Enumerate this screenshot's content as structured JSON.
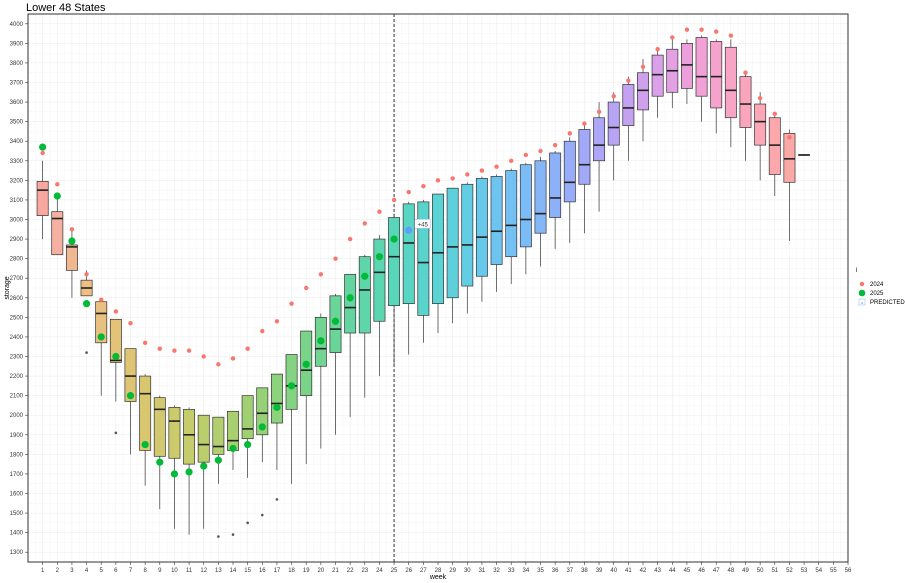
{
  "title": "Lower 48 States",
  "chart_data": {
    "type": "box",
    "title": "Lower 48 States",
    "xlabel": "week",
    "ylabel": "storage",
    "xlim": [
      0,
      56
    ],
    "ylim": [
      1250,
      4050
    ],
    "x_ticks": [
      1,
      2,
      3,
      4,
      5,
      6,
      7,
      8,
      9,
      10,
      11,
      12,
      13,
      14,
      15,
      16,
      17,
      18,
      19,
      20,
      21,
      22,
      23,
      24,
      25,
      26,
      27,
      28,
      29,
      30,
      31,
      32,
      33,
      34,
      35,
      36,
      37,
      38,
      39,
      40,
      41,
      42,
      43,
      44,
      45,
      46,
      47,
      48,
      49,
      50,
      51,
      52,
      53,
      54,
      55,
      56
    ],
    "y_ticks": [
      1300,
      1400,
      1500,
      1600,
      1700,
      1800,
      1900,
      2000,
      2100,
      2200,
      2300,
      2400,
      2500,
      2600,
      2700,
      2800,
      2900,
      3000,
      3100,
      3200,
      3300,
      3400,
      3500,
      3600,
      3700,
      3800,
      3900,
      4000
    ],
    "current_week": 25,
    "legend_title": "l",
    "legend": [
      {
        "label": "2024",
        "color": "#f8766d"
      },
      {
        "label": "2025",
        "color": "#00ba38"
      },
      {
        "label": "PREDICTED",
        "color": "#619cff"
      }
    ],
    "boxes": [
      {
        "week": 1,
        "lo": 2900,
        "q1": 3020,
        "med": 3150,
        "q3": 3195,
        "hi": 3300,
        "color": "#f8a8a0",
        "outliers": []
      },
      {
        "week": 2,
        "lo": 2820,
        "q1": 2820,
        "med": 3005,
        "q3": 3040,
        "hi": 3120,
        "color": "#f4b0a0",
        "outliers": []
      },
      {
        "week": 3,
        "lo": 2600,
        "q1": 2740,
        "med": 2860,
        "q3": 2870,
        "hi": 2940,
        "color": "#f0b890",
        "outliers": []
      },
      {
        "week": 4,
        "lo": 2610,
        "q1": 2610,
        "med": 2650,
        "q3": 2690,
        "hi": 2740,
        "color": "#ecbf85",
        "outliers": [
          2320
        ]
      },
      {
        "week": 5,
        "lo": 2100,
        "q1": 2370,
        "med": 2520,
        "q3": 2580,
        "hi": 2600,
        "color": "#e8c080",
        "outliers": []
      },
      {
        "week": 6,
        "lo": 2070,
        "q1": 2270,
        "med": 2280,
        "q3": 2490,
        "hi": 2490,
        "color": "#e4c378",
        "outliers": [
          1910
        ]
      },
      {
        "week": 7,
        "lo": 1800,
        "q1": 2070,
        "med": 2200,
        "q3": 2340,
        "hi": 2340,
        "color": "#dfc573",
        "outliers": []
      },
      {
        "week": 8,
        "lo": 1640,
        "q1": 1820,
        "med": 2110,
        "q3": 2200,
        "hi": 2210,
        "color": "#d9c770",
        "outliers": []
      },
      {
        "week": 9,
        "lo": 1520,
        "q1": 1790,
        "med": 2030,
        "q3": 2090,
        "hi": 2100,
        "color": "#d2c96e",
        "outliers": []
      },
      {
        "week": 10,
        "lo": 1420,
        "q1": 1780,
        "med": 1970,
        "q3": 2040,
        "hi": 2050,
        "color": "#cccb6c",
        "outliers": []
      },
      {
        "week": 11,
        "lo": 1390,
        "q1": 1750,
        "med": 1900,
        "q3": 2030,
        "hi": 2040,
        "color": "#c5cc6b",
        "outliers": []
      },
      {
        "week": 12,
        "lo": 1420,
        "q1": 1760,
        "med": 1850,
        "q3": 2000,
        "hi": 2000,
        "color": "#bccd6c",
        "outliers": []
      },
      {
        "week": 13,
        "lo": 1650,
        "q1": 1800,
        "med": 1840,
        "q3": 1990,
        "hi": 1990,
        "color": "#b3ce6e",
        "outliers": [
          1380
        ]
      },
      {
        "week": 14,
        "lo": 1720,
        "q1": 1820,
        "med": 1870,
        "q3": 2020,
        "hi": 2020,
        "color": "#aacf70",
        "outliers": [
          1390
        ]
      },
      {
        "week": 15,
        "lo": 1680,
        "q1": 1880,
        "med": 1930,
        "q3": 2100,
        "hi": 2100,
        "color": "#a1d073",
        "outliers": [
          1450
        ]
      },
      {
        "week": 16,
        "lo": 1760,
        "q1": 1900,
        "med": 2010,
        "q3": 2140,
        "hi": 2140,
        "color": "#97d177",
        "outliers": [
          1490
        ]
      },
      {
        "week": 17,
        "lo": 1720,
        "q1": 1960,
        "med": 2060,
        "q3": 2210,
        "hi": 2210,
        "color": "#8dd27c",
        "outliers": [
          1570
        ]
      },
      {
        "week": 18,
        "lo": 1650,
        "q1": 2030,
        "med": 2150,
        "q3": 2310,
        "hi": 2310,
        "color": "#83d382",
        "outliers": []
      },
      {
        "week": 19,
        "lo": 1750,
        "q1": 2100,
        "med": 2230,
        "q3": 2430,
        "hi": 2430,
        "color": "#79d389",
        "outliers": []
      },
      {
        "week": 20,
        "lo": 1830,
        "q1": 2250,
        "med": 2340,
        "q3": 2500,
        "hi": 2520,
        "color": "#71d490",
        "outliers": []
      },
      {
        "week": 21,
        "lo": 1900,
        "q1": 2320,
        "med": 2440,
        "q3": 2610,
        "hi": 2620,
        "color": "#6ad598",
        "outliers": []
      },
      {
        "week": 22,
        "lo": 1990,
        "q1": 2420,
        "med": 2550,
        "q3": 2720,
        "hi": 2720,
        "color": "#64d5a0",
        "outliers": []
      },
      {
        "week": 23,
        "lo": 2090,
        "q1": 2420,
        "med": 2640,
        "q3": 2810,
        "hi": 2820,
        "color": "#5fd6a9",
        "outliers": []
      },
      {
        "week": 24,
        "lo": 2200,
        "q1": 2480,
        "med": 2730,
        "q3": 2900,
        "hi": 2920,
        "color": "#5bd6b1",
        "outliers": []
      },
      {
        "week": 25,
        "lo": 2250,
        "q1": 2560,
        "med": 2810,
        "q3": 3010,
        "hi": 3030,
        "color": "#59d6ba",
        "outliers": []
      },
      {
        "week": 26,
        "lo": 2310,
        "q1": 2570,
        "med": 2880,
        "q3": 3080,
        "hi": 3090,
        "color": "#58d5c3",
        "outliers": []
      },
      {
        "week": 27,
        "lo": 2370,
        "q1": 2510,
        "med": 2780,
        "q3": 3090,
        "hi": 3100,
        "color": "#59d4cc",
        "outliers": []
      },
      {
        "week": 28,
        "lo": 2420,
        "q1": 2570,
        "med": 2830,
        "q3": 3130,
        "hi": 3130,
        "color": "#5bd2d4",
        "outliers": []
      },
      {
        "week": 29,
        "lo": 2470,
        "q1": 2600,
        "med": 2860,
        "q3": 3160,
        "hi": 3160,
        "color": "#5ed0dc",
        "outliers": []
      },
      {
        "week": 30,
        "lo": 2520,
        "q1": 2660,
        "med": 2870,
        "q3": 3180,
        "hi": 3190,
        "color": "#62cde3",
        "outliers": []
      },
      {
        "week": 31,
        "lo": 2580,
        "q1": 2710,
        "med": 2910,
        "q3": 3210,
        "hi": 3220,
        "color": "#67c9e9",
        "outliers": []
      },
      {
        "week": 32,
        "lo": 2630,
        "q1": 2770,
        "med": 2940,
        "q3": 3220,
        "hi": 3230,
        "color": "#6dc5ef",
        "outliers": []
      },
      {
        "week": 33,
        "lo": 2670,
        "q1": 2810,
        "med": 2970,
        "q3": 3250,
        "hi": 3260,
        "color": "#74c0f3",
        "outliers": []
      },
      {
        "week": 34,
        "lo": 2720,
        "q1": 2860,
        "med": 3000,
        "q3": 3280,
        "hi": 3290,
        "color": "#7bbbf6",
        "outliers": []
      },
      {
        "week": 35,
        "lo": 2760,
        "q1": 2930,
        "med": 3030,
        "q3": 3300,
        "hi": 3320,
        "color": "#84b6f8",
        "outliers": []
      },
      {
        "week": 36,
        "lo": 2850,
        "q1": 3010,
        "med": 3110,
        "q3": 3340,
        "hi": 3350,
        "color": "#8db1f9",
        "outliers": []
      },
      {
        "week": 37,
        "lo": 2880,
        "q1": 3090,
        "med": 3190,
        "q3": 3400,
        "hi": 3420,
        "color": "#97adf9",
        "outliers": []
      },
      {
        "week": 38,
        "lo": 2930,
        "q1": 3180,
        "med": 3280,
        "q3": 3460,
        "hi": 3500,
        "color": "#a1a9f8",
        "outliers": []
      },
      {
        "week": 39,
        "lo": 3040,
        "q1": 3300,
        "med": 3380,
        "q3": 3520,
        "hi": 3600,
        "color": "#ada6f6",
        "outliers": []
      },
      {
        "week": 40,
        "lo": 3200,
        "q1": 3380,
        "med": 3470,
        "q3": 3600,
        "hi": 3650,
        "color": "#b8a4f4",
        "outliers": []
      },
      {
        "week": 41,
        "lo": 3300,
        "q1": 3480,
        "med": 3570,
        "q3": 3690,
        "hi": 3730,
        "color": "#c4a2f1",
        "outliers": []
      },
      {
        "week": 42,
        "lo": 3400,
        "q1": 3560,
        "med": 3660,
        "q3": 3750,
        "hi": 3820,
        "color": "#cfa1ed",
        "outliers": []
      },
      {
        "week": 43,
        "lo": 3520,
        "q1": 3630,
        "med": 3740,
        "q3": 3840,
        "hi": 3880,
        "color": "#daa0e8",
        "outliers": []
      },
      {
        "week": 44,
        "lo": 3570,
        "q1": 3650,
        "med": 3760,
        "q3": 3870,
        "hi": 3920,
        "color": "#e3a0e2",
        "outliers": []
      },
      {
        "week": 45,
        "lo": 3590,
        "q1": 3670,
        "med": 3790,
        "q3": 3900,
        "hi": 3920,
        "color": "#eba0dc",
        "outliers": []
      },
      {
        "week": 46,
        "lo": 3500,
        "q1": 3630,
        "med": 3730,
        "q3": 3930,
        "hi": 3940,
        "color": "#f1a1d5",
        "outliers": []
      },
      {
        "week": 47,
        "lo": 3440,
        "q1": 3570,
        "med": 3730,
        "q3": 3910,
        "hi": 3920,
        "color": "#f5a2cd",
        "outliers": []
      },
      {
        "week": 48,
        "lo": 3370,
        "q1": 3520,
        "med": 3660,
        "q3": 3880,
        "hi": 3920,
        "color": "#f8a4c5",
        "outliers": []
      },
      {
        "week": 49,
        "lo": 3300,
        "q1": 3470,
        "med": 3590,
        "q3": 3730,
        "hi": 3760,
        "color": "#faa5bd",
        "outliers": []
      },
      {
        "week": 50,
        "lo": 3200,
        "q1": 3380,
        "med": 3500,
        "q3": 3590,
        "hi": 3650,
        "color": "#fba7b5",
        "outliers": []
      },
      {
        "week": 51,
        "lo": 3120,
        "q1": 3230,
        "med": 3380,
        "q3": 3520,
        "hi": 3530,
        "color": "#fba8ad",
        "outliers": []
      },
      {
        "week": 52,
        "lo": 2890,
        "q1": 3190,
        "med": 3310,
        "q3": 3440,
        "hi": 3460,
        "color": "#faa9a6",
        "outliers": []
      },
      {
        "week": 53,
        "lo": 3330,
        "q1": 3330,
        "med": 3330,
        "q3": 3330,
        "hi": 3330,
        "color": "#f8a8a0",
        "outliers": []
      }
    ],
    "series": [
      {
        "name": "2024",
        "color": "#f8766d",
        "x": [
          1,
          2,
          3,
          4,
          5,
          6,
          7,
          8,
          9,
          10,
          11,
          12,
          13,
          14,
          15,
          16,
          17,
          18,
          19,
          20,
          21,
          22,
          23,
          24,
          25,
          26,
          27,
          28,
          29,
          30,
          31,
          32,
          33,
          34,
          35,
          36,
          37,
          38,
          39,
          40,
          41,
          42,
          43,
          44,
          45,
          46,
          47,
          48,
          49,
          50,
          51,
          52
        ],
        "values": [
          3340,
          3180,
          2950,
          2720,
          2590,
          2530,
          2470,
          2370,
          2340,
          2330,
          2330,
          2300,
          2260,
          2290,
          2340,
          2430,
          2480,
          2570,
          2650,
          2720,
          2800,
          2900,
          2980,
          3040,
          3100,
          3140,
          3170,
          3200,
          3210,
          3230,
          3250,
          3270,
          3300,
          3330,
          3350,
          3380,
          3440,
          3490,
          3550,
          3630,
          3710,
          3780,
          3870,
          3930,
          3970,
          3970,
          3960,
          3940,
          3750,
          3620,
          3540,
          3420
        ]
      },
      {
        "name": "2025",
        "color": "#00ba38",
        "x": [
          1,
          2,
          3,
          4,
          5,
          6,
          7,
          8,
          9,
          10,
          11,
          12,
          13,
          14,
          15,
          16,
          17,
          18,
          19,
          20,
          21,
          22,
          23,
          24,
          25
        ],
        "values": [
          3370,
          3120,
          2890,
          2570,
          2400,
          2300,
          2100,
          1850,
          1760,
          1700,
          1710,
          1740,
          1770,
          1830,
          1850,
          1940,
          2040,
          2150,
          2260,
          2380,
          2480,
          2600,
          2710,
          2810,
          2900
        ]
      },
      {
        "name": "PREDICTED",
        "color": "#619cff",
        "x": [
          26
        ],
        "values": [
          2945
        ],
        "annotation": "+45"
      }
    ]
  }
}
